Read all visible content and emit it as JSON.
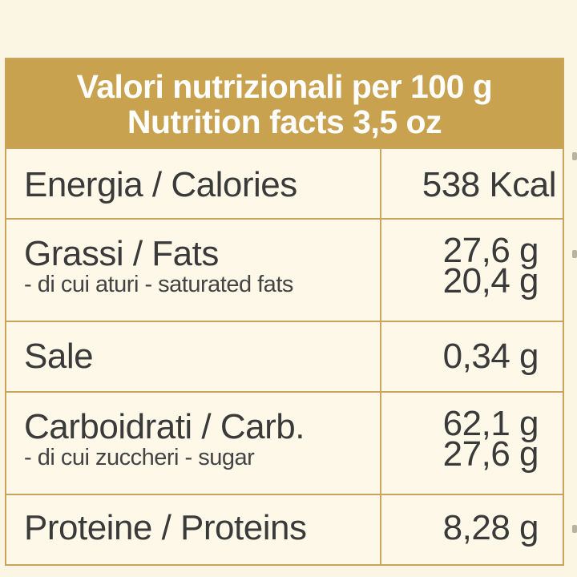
{
  "header": {
    "line1": "Valori nutrizionali per 100 g",
    "line2": "Nutrition facts 3,5 oz"
  },
  "rows": {
    "energy": {
      "label": "Energia / Calories",
      "value": "538 Kcal"
    },
    "fats": {
      "label": "Grassi / Fats",
      "value": "27,6 g",
      "sub_label": "- di cui aturi - saturated fats",
      "sub_value": "20,4 g"
    },
    "salt": {
      "label": "Sale",
      "value": "0,34 g"
    },
    "carb": {
      "label": "Carboidrati / Carb.",
      "value": "62,1 g",
      "sub_label": "- di cui zuccheri - sugar",
      "sub_value": "27,6 g"
    },
    "protein": {
      "label": "Proteine / Proteins",
      "value": "8,28 g"
    }
  },
  "colors": {
    "header_bg": "#c8a24f",
    "border": "#caa45a",
    "background": "#fbf6e4"
  }
}
